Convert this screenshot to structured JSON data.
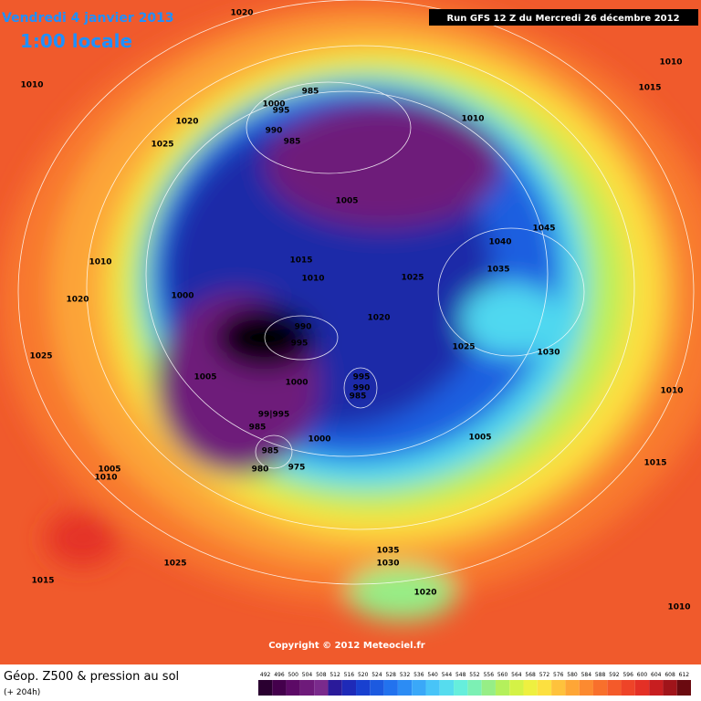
{
  "header": {
    "date": "Vendredi 4 janvier 2013",
    "time": "1:00 locale",
    "run": "Run GFS 12 Z du Mercredi 26 décembre 2012"
  },
  "copyright": "Copyright © 2012 Meteociel.fr",
  "footer": {
    "title": "Géop. Z500 & pression au sol",
    "lead": "(+ 204h)"
  },
  "pressure_labels": [
    "1020",
    "1010",
    "1010",
    "1015",
    "985",
    "1000",
    "995",
    "1020",
    "990",
    "985",
    "1025",
    "1010",
    "1005",
    "1045",
    "1040",
    "1035",
    "1010",
    "1015",
    "1010",
    "1025",
    "1000",
    "1020",
    "1020",
    "990",
    "995",
    "1025",
    "1030",
    "1025",
    "1005",
    "1000",
    "995",
    "990",
    "985",
    "1010",
    "99|995",
    "985",
    "1000",
    "1005",
    "985",
    "980",
    "975",
    "1005",
    "1010",
    "1015",
    "1025",
    "1035",
    "1030",
    "1015",
    "1020",
    "1010"
  ],
  "colorbar": {
    "values": [
      492,
      496,
      500,
      504,
      508,
      512,
      516,
      520,
      524,
      528,
      532,
      536,
      540,
      544,
      548,
      552,
      556,
      560,
      564,
      568,
      572,
      576,
      580,
      584,
      588,
      592,
      596,
      600,
      604,
      608,
      612
    ],
    "colors": [
      "#2a0030",
      "#44004c",
      "#5c0a66",
      "#6e1a7a",
      "#7a2a8c",
      "#2a1a9a",
      "#1e2ab8",
      "#1840d0",
      "#1c5ae0",
      "#2272ee",
      "#2c8cf4",
      "#3aa8f8",
      "#48c4f8",
      "#56dcee",
      "#66eedc",
      "#7cf0b4",
      "#96ee86",
      "#b4f05c",
      "#d4f246",
      "#eef040",
      "#fce040",
      "#fec23c",
      "#fea636",
      "#fc8a30",
      "#f8702c",
      "#f45a2a",
      "#ee4428",
      "#e43026",
      "#c81e20",
      "#a0141a",
      "#6a0a10"
    ]
  }
}
